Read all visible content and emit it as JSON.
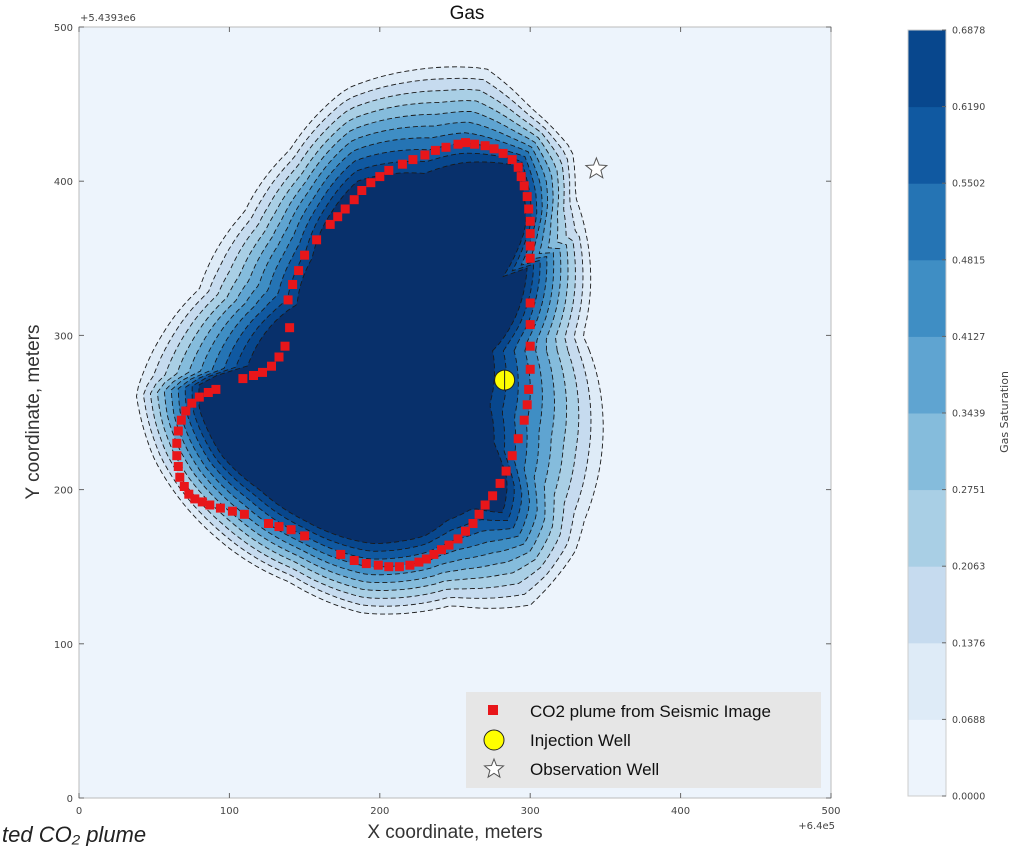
{
  "chart_data": {
    "type": "heatmap",
    "title": "Gas",
    "xlabel": "X coordinate, meters",
    "ylabel": "Y coordinate, meters",
    "x_offset_label": "+6.4e5",
    "y_offset_label": "+5.4393e6",
    "xlim": [
      0,
      500
    ],
    "ylim": [
      0,
      500
    ],
    "x_ticks": [
      "0",
      "100",
      "200",
      "300",
      "400",
      "500"
    ],
    "y_ticks": [
      "0",
      "100",
      "200",
      "300",
      "400",
      "500"
    ],
    "grid": false,
    "colorbar": {
      "label": "Gas Saturation",
      "levels": [
        "0.0000",
        "0.0688",
        "0.1376",
        "0.2063",
        "0.2751",
        "0.3439",
        "0.4127",
        "0.4815",
        "0.5502",
        "0.6190",
        "0.6878"
      ],
      "colors": [
        "#edf4fc",
        "#deebf7",
        "#c6dbef",
        "#a9cfe5",
        "#85bcdc",
        "#5fa4d1",
        "#3f8ec4",
        "#2574b4",
        "#1059a1",
        "#08478d",
        "#08306b"
      ]
    },
    "saturation_outline": [
      [
        38,
        262
      ],
      [
        55,
        300
      ],
      [
        80,
        330
      ],
      [
        110,
        380
      ],
      [
        140,
        420
      ],
      [
        178,
        460
      ],
      [
        222,
        472
      ],
      [
        271,
        473
      ],
      [
        300,
        448
      ],
      [
        328,
        420
      ],
      [
        330,
        390
      ],
      [
        335,
        300
      ],
      [
        336,
        180
      ],
      [
        330,
        160
      ],
      [
        300,
        125
      ],
      [
        248,
        125
      ],
      [
        188,
        120
      ],
      [
        140,
        140
      ],
      [
        90,
        170
      ],
      [
        50,
        220
      ]
    ],
    "saturation_core": [
      [
        80,
        270
      ],
      [
        112,
        280
      ],
      [
        145,
        320
      ],
      [
        155,
        350
      ],
      [
        168,
        380
      ],
      [
        185,
        400
      ],
      [
        230,
        405
      ],
      [
        255,
        412
      ],
      [
        292,
        410
      ],
      [
        297,
        370
      ],
      [
        298,
        345
      ],
      [
        280,
        335
      ],
      [
        275,
        290
      ],
      [
        273,
        255
      ],
      [
        276,
        230
      ],
      [
        285,
        205
      ],
      [
        282,
        185
      ],
      [
        262,
        188
      ],
      [
        245,
        180
      ],
      [
        230,
        170
      ],
      [
        195,
        165
      ],
      [
        150,
        180
      ],
      [
        120,
        200
      ],
      [
        95,
        222
      ],
      [
        80,
        252
      ]
    ],
    "series": [
      {
        "name": "CO2 plume from Seismic Image",
        "marker": "square",
        "color": "#e8161a",
        "points": [
          [
            109,
            272
          ],
          [
            116,
            274
          ],
          [
            122,
            276
          ],
          [
            128,
            280
          ],
          [
            133,
            286
          ],
          [
            137,
            293
          ],
          [
            140,
            305
          ],
          [
            139,
            323
          ],
          [
            142,
            333
          ],
          [
            146,
            342
          ],
          [
            150,
            352
          ],
          [
            158,
            362
          ],
          [
            167,
            372
          ],
          [
            172,
            377
          ],
          [
            177,
            382
          ],
          [
            183,
            388
          ],
          [
            188,
            394
          ],
          [
            194,
            399
          ],
          [
            200,
            403
          ],
          [
            206,
            407
          ],
          [
            215,
            411
          ],
          [
            222,
            414
          ],
          [
            230,
            417
          ],
          [
            237,
            420
          ],
          [
            244,
            422
          ],
          [
            252,
            424
          ],
          [
            257,
            425
          ],
          [
            263,
            424
          ],
          [
            270,
            423
          ],
          [
            276,
            421
          ],
          [
            282,
            418
          ],
          [
            288,
            414
          ],
          [
            292,
            409
          ],
          [
            294,
            403
          ],
          [
            296,
            397
          ],
          [
            298,
            390
          ],
          [
            299,
            382
          ],
          [
            300,
            374
          ],
          [
            300,
            366
          ],
          [
            300,
            358
          ],
          [
            300,
            350
          ],
          [
            300,
            321
          ],
          [
            300,
            307
          ],
          [
            300,
            293
          ],
          [
            300,
            278
          ],
          [
            299,
            265
          ],
          [
            298,
            255
          ],
          [
            296,
            245
          ],
          [
            292,
            233
          ],
          [
            288,
            222
          ],
          [
            284,
            212
          ],
          [
            280,
            204
          ],
          [
            275,
            196
          ],
          [
            270,
            190
          ],
          [
            266,
            184
          ],
          [
            262,
            178
          ],
          [
            257,
            173
          ],
          [
            252,
            168
          ],
          [
            246,
            164
          ],
          [
            241,
            161
          ],
          [
            236,
            158
          ],
          [
            231,
            155
          ],
          [
            226,
            153
          ],
          [
            220,
            151
          ],
          [
            213,
            150
          ],
          [
            206,
            150
          ],
          [
            199,
            151
          ],
          [
            191,
            152
          ],
          [
            183,
            154
          ],
          [
            174,
            158
          ],
          [
            150,
            170
          ],
          [
            141,
            174
          ],
          [
            133,
            176
          ],
          [
            126,
            178
          ],
          [
            110,
            184
          ],
          [
            102,
            186
          ],
          [
            94,
            188
          ],
          [
            87,
            190
          ],
          [
            82,
            192
          ],
          [
            77,
            194
          ],
          [
            73,
            197
          ],
          [
            70,
            202
          ],
          [
            67,
            208
          ],
          [
            66,
            215
          ],
          [
            65,
            222
          ],
          [
            65,
            230
          ],
          [
            66,
            238
          ],
          [
            68,
            245
          ],
          [
            71,
            251
          ],
          [
            75,
            256
          ],
          [
            80,
            260
          ],
          [
            86,
            263
          ],
          [
            91,
            265
          ]
        ]
      },
      {
        "name": "Injection Well",
        "marker": "circle",
        "color": "#ffff00",
        "points": [
          [
            283,
            271
          ]
        ]
      },
      {
        "name": "Observation Well",
        "marker": "star",
        "color": "#ffffff",
        "points": [
          [
            344,
            408
          ]
        ]
      }
    ]
  },
  "caption_fragment": "ted CO₂ plume"
}
